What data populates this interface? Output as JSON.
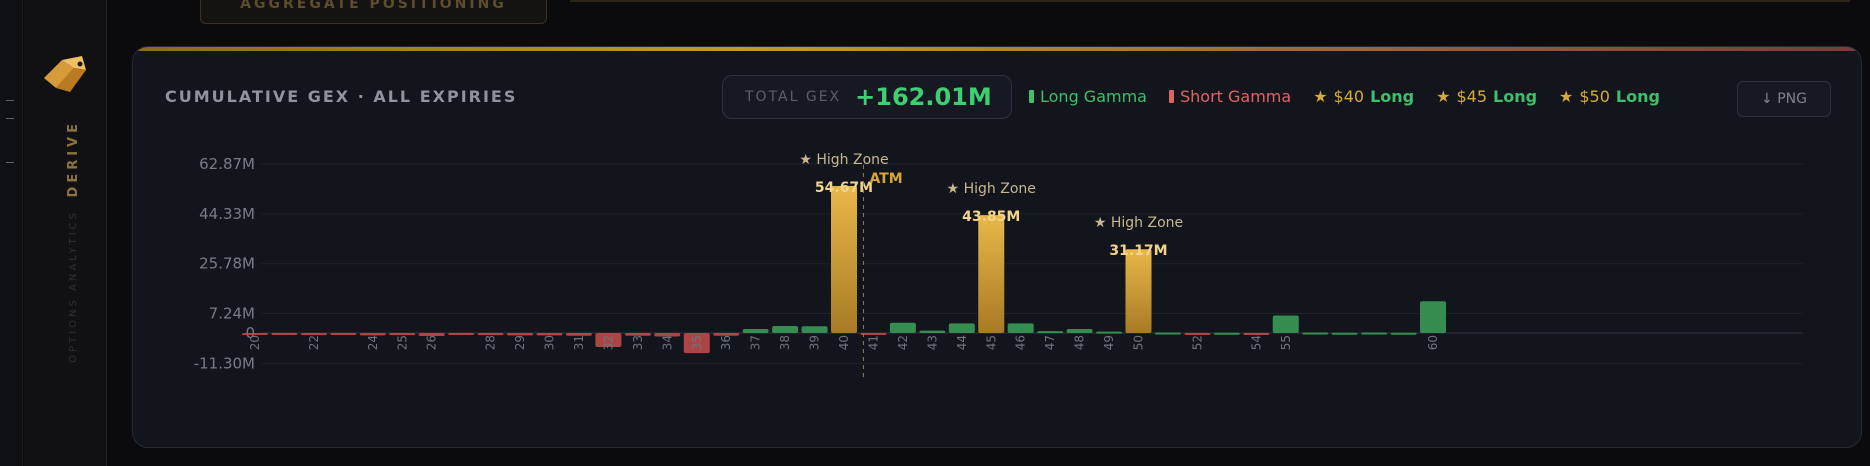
{
  "top_tab": {
    "label": "AGGREGATE POSITIONING"
  },
  "sidebar": {
    "brand": "DERIVE",
    "subtitle": "OPTIONS ANALYTICS"
  },
  "panel": {
    "title": "CUMULATIVE GEX · ALL EXPIRIES",
    "total_label": "TOTAL GEX",
    "total_value": "+162.01M",
    "png_label": "↓ PNG"
  },
  "legend": [
    {
      "label": "Long Gamma",
      "kind": "long",
      "color": "#3fbf6a"
    },
    {
      "label": "Short Gamma",
      "kind": "short",
      "color": "#e06464"
    },
    {
      "label": "$40 Long",
      "kind": "level",
      "color": "#d6a93a"
    },
    {
      "label": "$45 Long",
      "kind": "level",
      "color": "#d6a93a"
    },
    {
      "label": "$50 Long",
      "kind": "level",
      "color": "#d6a93a"
    }
  ],
  "colors": {
    "long": "#3a9a57",
    "short": "#c04a4a",
    "high": "#d9a534",
    "accent": "#d6a93a"
  },
  "chart_data": {
    "type": "bar",
    "title": "CUMULATIVE GEX · ALL EXPIRIES",
    "ylim": [
      -11.3,
      62.87
    ],
    "y_ticks": [
      "62.87M",
      "44.33M",
      "25.78M",
      "7.24M",
      "0",
      "-11.30M"
    ],
    "y_tick_values": [
      62.87,
      44.33,
      25.78,
      7.24,
      0,
      -11.3
    ],
    "atm_label": "ATM",
    "atm_strike": 41,
    "high_zone_label": "★ High Zone",
    "unit": "M",
    "grid": true,
    "legend_position": "top-right",
    "strikes": [
      {
        "x": 20,
        "v": -0.6
      },
      {
        "x": 21,
        "v": -0.4
      },
      {
        "x": 22,
        "v": -0.8
      },
      {
        "x": 23,
        "v": -0.5
      },
      {
        "x": 24,
        "v": -0.9
      },
      {
        "x": 25,
        "v": -0.8
      },
      {
        "x": 26,
        "v": -1.1
      },
      {
        "x": 27,
        "v": -0.3
      },
      {
        "x": 28,
        "v": -0.8
      },
      {
        "x": 29,
        "v": -0.9
      },
      {
        "x": 30,
        "v": -0.9
      },
      {
        "x": 31,
        "v": -1.0
      },
      {
        "x": 32,
        "v": -5.2
      },
      {
        "x": 33,
        "v": -1.0
      },
      {
        "x": 34,
        "v": -1.3
      },
      {
        "x": 35,
        "v": -7.5
      },
      {
        "x": 36,
        "v": -1.0
      },
      {
        "x": 37,
        "v": 1.5
      },
      {
        "x": 38,
        "v": 2.6
      },
      {
        "x": 39,
        "v": 2.5
      },
      {
        "x": 40,
        "v": 54.67,
        "label": "54.67M",
        "high": true
      },
      {
        "x": 41,
        "v": -0.7
      },
      {
        "x": 42,
        "v": 3.8
      },
      {
        "x": 43,
        "v": 0.9
      },
      {
        "x": 44,
        "v": 3.6
      },
      {
        "x": 45,
        "v": 43.85,
        "label": "43.85M",
        "high": true
      },
      {
        "x": 46,
        "v": 3.6
      },
      {
        "x": 47,
        "v": 0.7
      },
      {
        "x": 48,
        "v": 1.5
      },
      {
        "x": 49,
        "v": 0.5
      },
      {
        "x": 50,
        "v": 31.17,
        "label": "31.17M",
        "high": true
      },
      {
        "x": 51,
        "v": 0.2
      },
      {
        "x": 52,
        "v": -0.7
      },
      {
        "x": 53,
        "v": 0.1
      },
      {
        "x": 54,
        "v": -0.6
      },
      {
        "x": 55,
        "v": 6.5
      },
      {
        "x": 56,
        "v": 0.2
      },
      {
        "x": 57,
        "v": 0.1
      },
      {
        "x": 58,
        "v": 0.2
      },
      {
        "x": 59,
        "v": 0.1
      },
      {
        "x": 60,
        "v": 11.8
      }
    ],
    "tick_labels": [
      "20",
      "22",
      "24",
      "25",
      "26",
      "28",
      "29",
      "30",
      "31",
      "32",
      "33",
      "34",
      "35",
      "36",
      "37",
      "38",
      "39",
      "40",
      "41",
      "42",
      "43",
      "44",
      "45",
      "46",
      "47",
      "48",
      "49",
      "50",
      "52",
      "54",
      "55",
      "60"
    ]
  }
}
